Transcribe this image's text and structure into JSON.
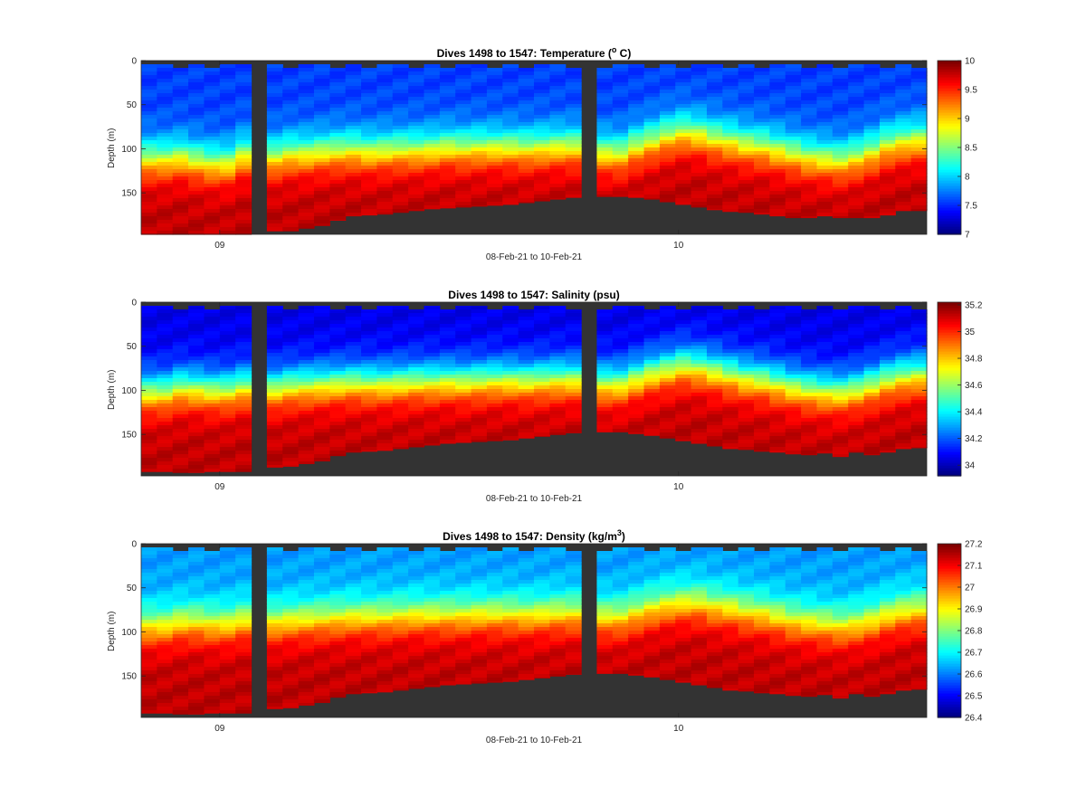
{
  "chart_data": [
    {
      "type": "heatmap",
      "title_main": "Dives 1498 to 1547: Temperature (",
      "title_sup": "o",
      "title_tail": " C)",
      "xlabel": "08-Feb-21 to 10-Feb-21",
      "ylabel": "Depth (m)",
      "x_tick_labels": [
        "09",
        "10"
      ],
      "x_tick_values": [
        0.1,
        0.684
      ],
      "y_tick_labels": [
        "0",
        "50",
        "100",
        "150"
      ],
      "ylim": [
        0,
        197
      ],
      "y_reversed": true,
      "colorbar": {
        "min": 7,
        "max": 10,
        "tick_labels": [
          "7",
          "7.5",
          "8",
          "8.5",
          "9",
          "9.5",
          "10"
        ]
      },
      "colormap": "jet",
      "dives": 50,
      "surface_value": 7.55,
      "thermocline_depth_m": [
        110,
        110,
        108,
        112,
        115,
        115,
        106,
        null,
        108,
        104,
        104,
        102,
        101,
        100,
        102,
        101,
        100,
        100,
        99,
        97,
        98,
        97,
        97,
        97,
        98,
        97,
        96,
        96,
        null,
        103,
        104,
        96,
        90,
        84,
        80,
        82,
        87,
        90,
        94,
        96,
        100,
        104,
        108,
        110,
        112,
        108,
        102,
        94,
        90,
        88
      ],
      "max_depth_m": [
        197,
        197,
        197,
        197,
        197,
        197,
        197,
        null,
        193,
        193,
        190,
        187,
        181,
        176,
        175,
        174,
        172,
        170,
        168,
        167,
        166,
        165,
        164,
        163,
        161,
        159,
        157,
        155,
        null,
        154,
        154,
        155,
        157,
        160,
        163,
        166,
        169,
        171,
        172,
        174,
        176,
        178,
        178,
        176,
        178,
        178,
        178,
        175,
        170,
        170
      ],
      "gap_dives": [
        7,
        28
      ]
    },
    {
      "type": "heatmap",
      "title_main": "Dives 1498 to 1547: Salinity (psu)",
      "title_sup": "",
      "title_tail": "",
      "xlabel": "08-Feb-21 to 10-Feb-21",
      "ylabel": "Depth (m)",
      "x_tick_labels": [
        "09",
        "10"
      ],
      "x_tick_values": [
        0.1,
        0.684
      ],
      "y_tick_labels": [
        "0",
        "50",
        "100",
        "150"
      ],
      "ylim": [
        0,
        197
      ],
      "y_reversed": true,
      "colorbar": {
        "min": 33.92,
        "max": 35.22,
        "tick_labels": [
          "34",
          "34.2",
          "34.4",
          "34.6",
          "34.8",
          "35",
          "35.2"
        ]
      },
      "colormap": "jet",
      "dives": 50,
      "surface_value": 34.05,
      "thermocline_depth_m": [
        100,
        100,
        95,
        96,
        98,
        98,
        94,
        null,
        96,
        93,
        92,
        91,
        90,
        89,
        90,
        90,
        89,
        88,
        88,
        87,
        88,
        87,
        86,
        86,
        87,
        86,
        85,
        85,
        null,
        90,
        90,
        84,
        78,
        74,
        70,
        72,
        76,
        80,
        84,
        86,
        90,
        94,
        97,
        99,
        100,
        97,
        92,
        86,
        82,
        80
      ],
      "max_depth_m": [
        192,
        192,
        193,
        193,
        192,
        192,
        192,
        null,
        187,
        186,
        183,
        180,
        174,
        170,
        169,
        168,
        166,
        164,
        162,
        160,
        159,
        158,
        157,
        156,
        154,
        152,
        150,
        148,
        null,
        147,
        147,
        149,
        151,
        154,
        157,
        160,
        163,
        166,
        167,
        169,
        170,
        172,
        173,
        171,
        175,
        170,
        173,
        170,
        166,
        165
      ],
      "gap_dives": [
        7,
        28
      ]
    },
    {
      "type": "heatmap",
      "title_main": "Dives 1498 to 1547: Density (kg/m",
      "title_sup": "3",
      "title_tail": ")",
      "xlabel": "08-Feb-21 to 10-Feb-21",
      "ylabel": "Depth (m)",
      "x_tick_labels": [
        "09",
        "10"
      ],
      "x_tick_values": [
        0.1,
        0.684
      ],
      "y_tick_labels": [
        "0",
        "50",
        "100",
        "150"
      ],
      "ylim": [
        0,
        197
      ],
      "y_reversed": true,
      "colorbar": {
        "min": 26.4,
        "max": 27.2,
        "tick_labels": [
          "26.4",
          "26.5",
          "26.6",
          "26.7",
          "26.8",
          "26.9",
          "27",
          "27.1",
          "27.2"
        ]
      },
      "colormap": "jet",
      "dives": 50,
      "surface_value": 26.62,
      "thermocline_depth_m": [
        92,
        92,
        88,
        88,
        90,
        90,
        86,
        null,
        88,
        86,
        85,
        84,
        83,
        82,
        82,
        82,
        81,
        80,
        80,
        80,
        80,
        79,
        79,
        79,
        80,
        79,
        78,
        78,
        null,
        82,
        82,
        77,
        72,
        68,
        66,
        66,
        70,
        72,
        76,
        78,
        82,
        86,
        88,
        90,
        92,
        90,
        86,
        80,
        76,
        74
      ],
      "max_depth_m": [
        192,
        192,
        193,
        193,
        192,
        192,
        192,
        null,
        187,
        186,
        183,
        180,
        174,
        170,
        169,
        168,
        166,
        164,
        162,
        160,
        159,
        158,
        157,
        156,
        154,
        152,
        150,
        148,
        null,
        147,
        147,
        149,
        151,
        154,
        157,
        160,
        163,
        166,
        167,
        169,
        170,
        172,
        173,
        171,
        175,
        170,
        173,
        170,
        166,
        165
      ],
      "gap_dives": [
        7,
        28
      ]
    }
  ]
}
